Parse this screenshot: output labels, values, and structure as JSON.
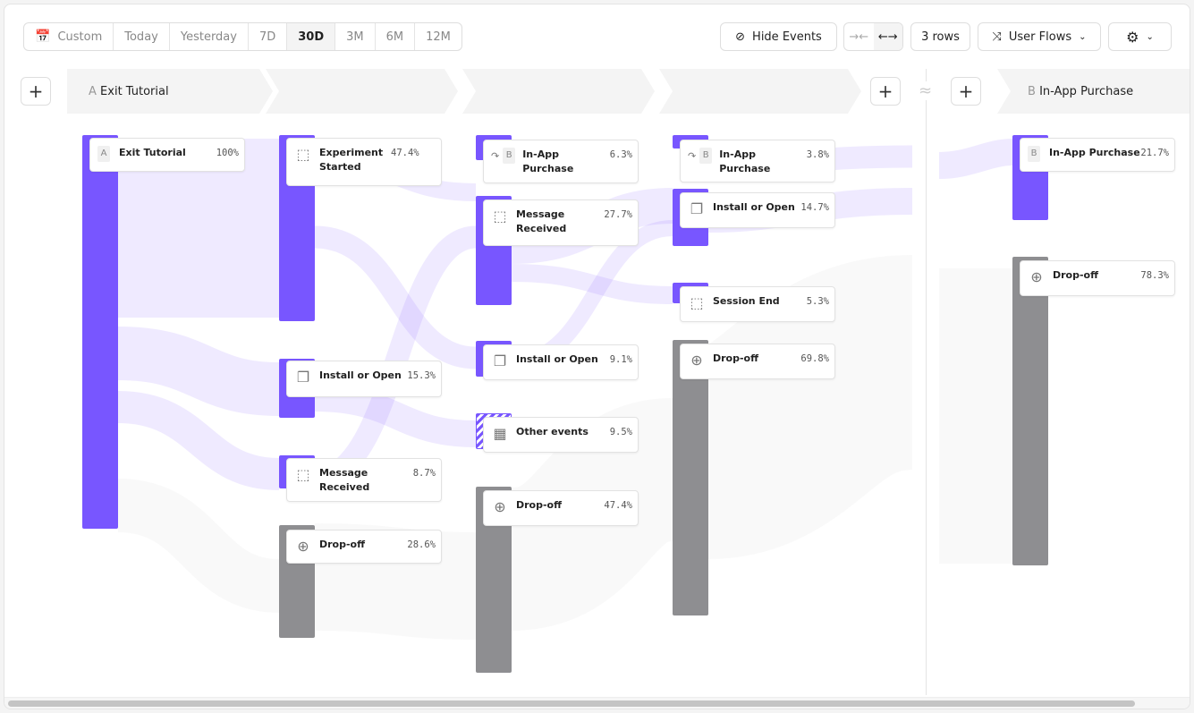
{
  "toolbar": {
    "date_ranges": [
      "Custom",
      "Today",
      "Yesterday",
      "7D",
      "30D",
      "3M",
      "6M",
      "12M"
    ],
    "selected_range": "30D",
    "hide_events": "Hide Events",
    "rows": "3 rows",
    "view": "User Flows"
  },
  "steps": {
    "a_letter": "A",
    "a_label": "Exit Tutorial",
    "b_letter": "B",
    "b_label": "In-App Purchase",
    "gap_symbol": "≈"
  },
  "colors": {
    "accent": "#7856ff",
    "dropoff": "#8e8e91",
    "flow": "#e9e4ff"
  },
  "columns": [
    {
      "nodes": [
        {
          "letter": "A",
          "label": "Exit Tutorial",
          "pct": "100%",
          "icon": "letter"
        }
      ]
    },
    {
      "nodes": [
        {
          "label": "Experiment Started",
          "pct": "47.4%",
          "icon": "cursor-click-icon"
        },
        {
          "label": "Install or Open",
          "pct": "15.3%",
          "icon": "copy-icon"
        },
        {
          "label": "Message Received",
          "pct": "8.7%",
          "icon": "cursor-click-icon"
        },
        {
          "label": "Drop-off",
          "pct": "28.6%",
          "icon": "arrow-down-circle-icon"
        }
      ]
    },
    {
      "nodes": [
        {
          "letter": "B",
          "label": "In-App Purchase",
          "pct": "6.3%",
          "icon": "skip-arrow-icon"
        },
        {
          "label": "Message Received",
          "pct": "27.7%",
          "icon": "cursor-click-icon"
        },
        {
          "label": "Install or Open",
          "pct": "9.1%",
          "icon": "copy-icon"
        },
        {
          "label": "Other events",
          "pct": "9.5%",
          "icon": "grid-icon"
        },
        {
          "label": "Drop-off",
          "pct": "47.4%",
          "icon": "arrow-down-circle-icon"
        }
      ]
    },
    {
      "nodes": [
        {
          "letter": "B",
          "label": "In-App Purchase",
          "pct": "3.8%",
          "icon": "skip-arrow-icon"
        },
        {
          "label": "Install or Open",
          "pct": "14.7%",
          "icon": "copy-icon"
        },
        {
          "label": "Session End",
          "pct": "5.3%",
          "icon": "cursor-click-icon"
        },
        {
          "label": "Drop-off",
          "pct": "69.8%",
          "icon": "arrow-down-circle-icon"
        }
      ]
    },
    {
      "nodes": [
        {
          "letter": "B",
          "label": "In-App Purchase",
          "pct": "21.7%",
          "icon": "letter"
        },
        {
          "label": "Drop-off",
          "pct": "78.3%",
          "icon": "arrow-down-circle-icon"
        }
      ]
    }
  ]
}
